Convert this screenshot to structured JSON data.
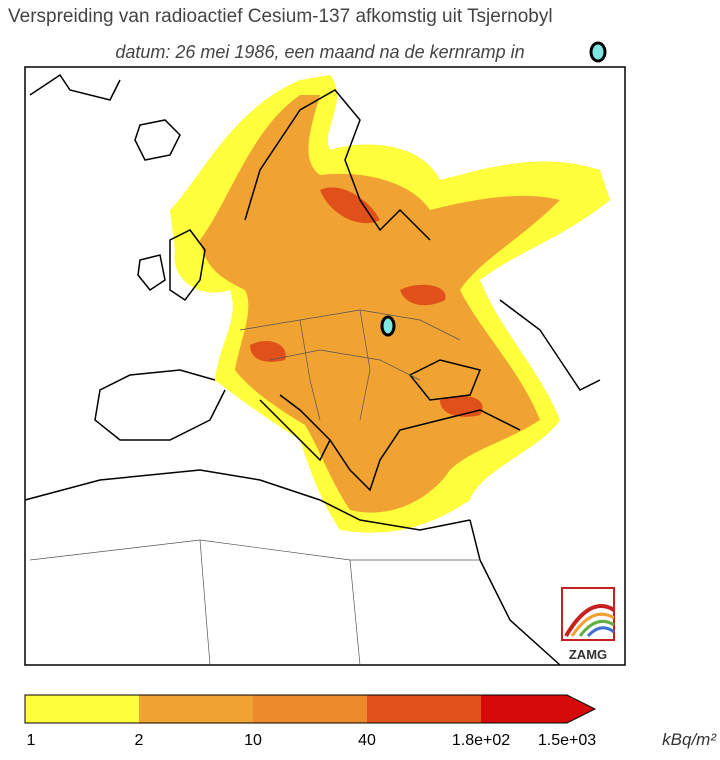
{
  "title": "Verspreiding van radioactief Cesium-137 afkomstig uit Tsjernobyl",
  "subtitle": "datum: 26 mei 1986, een maand na de kernramp in",
  "logo": "ZAMG",
  "legend": {
    "ticks": [
      "1",
      "2",
      "10",
      "40",
      "1.8e+02",
      "1.5e+03"
    ],
    "colors": [
      "#ffff3c",
      "#f0a232",
      "#ec8a2a",
      "#e0501a",
      "#d60a0a"
    ],
    "unit": "kBq/m²"
  }
}
